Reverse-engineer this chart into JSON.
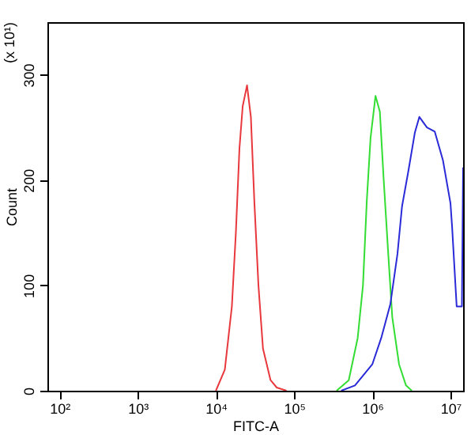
{
  "chart_data": {
    "type": "line",
    "xlabel": "FITC-A",
    "ylabel": "Count",
    "annotations": [
      "(x 10¹)"
    ],
    "log": "x",
    "xlim": [
      70,
      14500000
    ],
    "xticks": [
      {
        "value": 100,
        "label": "10²"
      },
      {
        "value": 1000,
        "label": "10³"
      },
      {
        "value": 10000,
        "label": "10⁴"
      },
      {
        "value": 100000,
        "label": "10⁵"
      },
      {
        "value": 1000000,
        "label": "10⁶"
      },
      {
        "value": 10000000,
        "label": "10⁷"
      }
    ],
    "ylim": [
      0,
      350
    ],
    "yticks": [
      0,
      100,
      200,
      300
    ],
    "grid": false,
    "series": [
      {
        "color": "#e8383d",
        "x": [
          10000,
          13000,
          16000,
          18000,
          20000,
          22000,
          25000,
          28000,
          31000,
          35000,
          40000,
          50000,
          60000,
          80000
        ],
        "values": [
          0,
          20,
          80,
          150,
          230,
          270,
          290,
          260,
          180,
          100,
          40,
          10,
          3,
          0
        ]
      },
      {
        "color": "#33dd33",
        "x": [
          350000,
          500000,
          650000,
          760000,
          850000,
          950000,
          1100000,
          1250000,
          1400000,
          1600000,
          1800000,
          2200000,
          2700000,
          3200000
        ],
        "values": [
          0,
          10,
          50,
          100,
          180,
          240,
          280,
          265,
          200,
          130,
          70,
          25,
          5,
          0
        ]
      },
      {
        "color": "#2a2ad8",
        "x": [
          400000,
          600000,
          1000000,
          1300000,
          1700000,
          2100000,
          2400000,
          2900000,
          3500000,
          4000000,
          5000000,
          6300000,
          8000000,
          10000000,
          10500000,
          12000000,
          14000000,
          14500000
        ],
        "values": [
          0,
          5,
          25,
          50,
          82,
          130,
          175,
          209,
          245,
          260,
          250,
          246,
          219,
          178,
          155,
          80,
          80,
          212
        ]
      }
    ]
  }
}
